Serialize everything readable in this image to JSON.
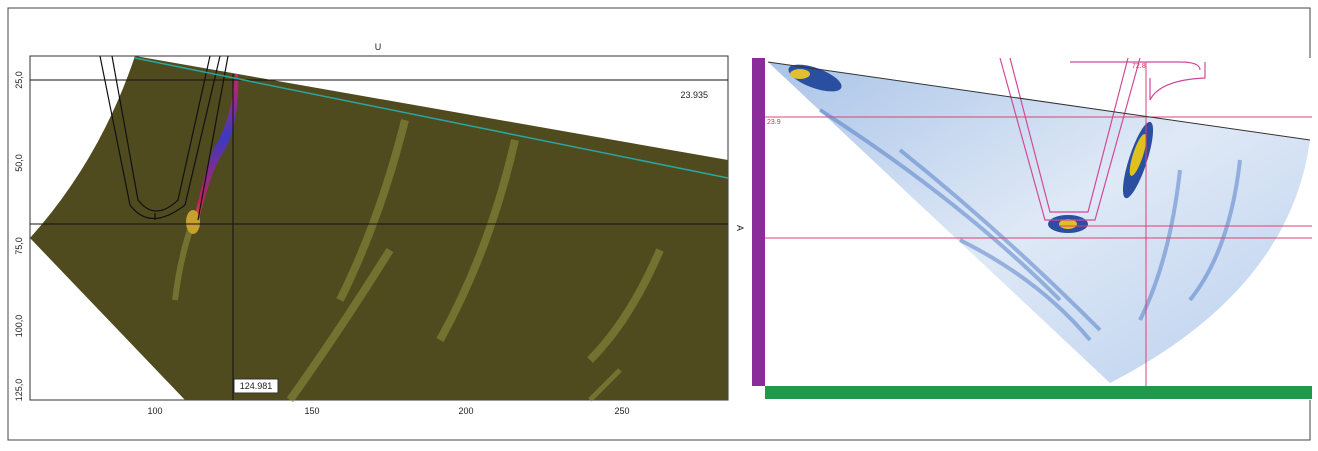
{
  "left_panel": {
    "top_label": "U",
    "side_label": "A",
    "readouts": [
      "23.935",
      "124.981"
    ],
    "y_ticks": [
      "25,0",
      "50,0",
      "75,0",
      "100,0",
      "125,0"
    ],
    "x_ticks": [
      "100",
      "150",
      "200",
      "250"
    ]
  },
  "right_panel": {
    "readouts": [
      "72.8",
      "23.9"
    ]
  }
}
